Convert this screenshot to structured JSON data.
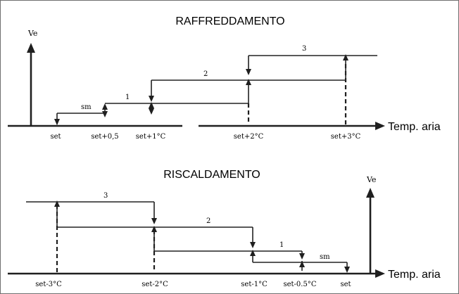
{
  "cooling": {
    "title": "RAFFREDDAMENTO",
    "axis_y_label": "Ve",
    "axis_x_label": "Temp. aria",
    "ticks": [
      "set",
      "set+0,5",
      "set+1°C",
      "set+2°C",
      "set+3°C"
    ],
    "step_labels": [
      "sm",
      "1",
      "2",
      "3"
    ]
  },
  "heating": {
    "title": "RISCALDAMENTO",
    "axis_y_label": "Ve",
    "axis_x_label": "Temp. aria",
    "ticks": [
      "set-3°C",
      "set-2°C",
      "set-1°C",
      "set-0.5°C",
      "set"
    ],
    "step_labels": [
      "3",
      "2",
      "1",
      "sm"
    ]
  }
}
